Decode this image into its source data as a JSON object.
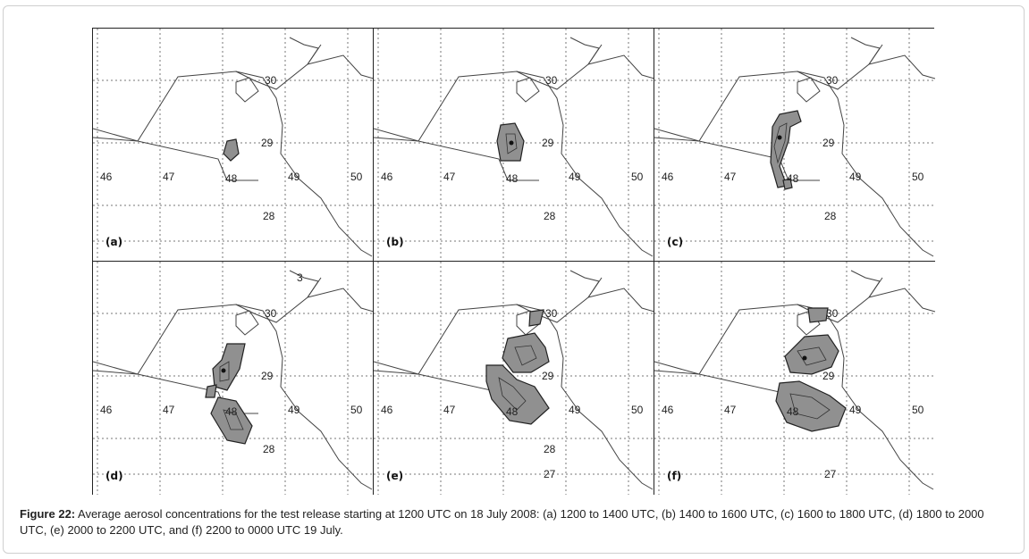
{
  "figure": {
    "panels": [
      {
        "id": "a",
        "label": "(a)",
        "labels": {
          "lon": [
            "46",
            "47",
            "48",
            "49",
            "50"
          ],
          "lat": [
            "30",
            "29",
            "28"
          ]
        }
      },
      {
        "id": "b",
        "label": "(b)",
        "labels": {
          "lon": [
            "46",
            "47",
            "48",
            "49",
            "50"
          ],
          "lat": [
            "30",
            "29",
            "28"
          ]
        }
      },
      {
        "id": "c",
        "label": "(c)",
        "labels": {
          "lon": [
            "46",
            "47",
            "48",
            "49",
            "50"
          ],
          "lat": [
            "30",
            "29",
            "28"
          ]
        }
      },
      {
        "id": "d",
        "label": "(d)",
        "labels": {
          "lon": [
            "46",
            "47",
            "48",
            "49",
            "50"
          ],
          "lat": [
            "3",
            "30",
            "29",
            "28"
          ]
        }
      },
      {
        "id": "e",
        "label": "(e)",
        "labels": {
          "lon": [
            "46",
            "47",
            "48",
            "49",
            "50"
          ],
          "lat": [
            "30",
            "29",
            "28",
            "27"
          ]
        }
      },
      {
        "id": "f",
        "label": "(f)",
        "labels": {
          "lon": [
            "46",
            "47",
            "48",
            "49",
            "50"
          ],
          "lat": [
            "30",
            "29",
            "27"
          ]
        }
      }
    ],
    "colors": {
      "plume": "#909090",
      "outline": "#222222",
      "grid": "#777777",
      "coast": "#444444"
    }
  },
  "caption": {
    "label": "Figure 22:",
    "text": " Average aerosol concentrations for the test release starting at 1200 UTC on 18 July 2008: (a) 1200 to 1400 UTC, (b) 1400 to 1600 UTC, (c) 1600 to 1800 UTC, (d) 1800 to 2000 UTC, (e) 2000 to 2200 UTC, and (f) 2200 to 0000 UTC 19 July."
  }
}
